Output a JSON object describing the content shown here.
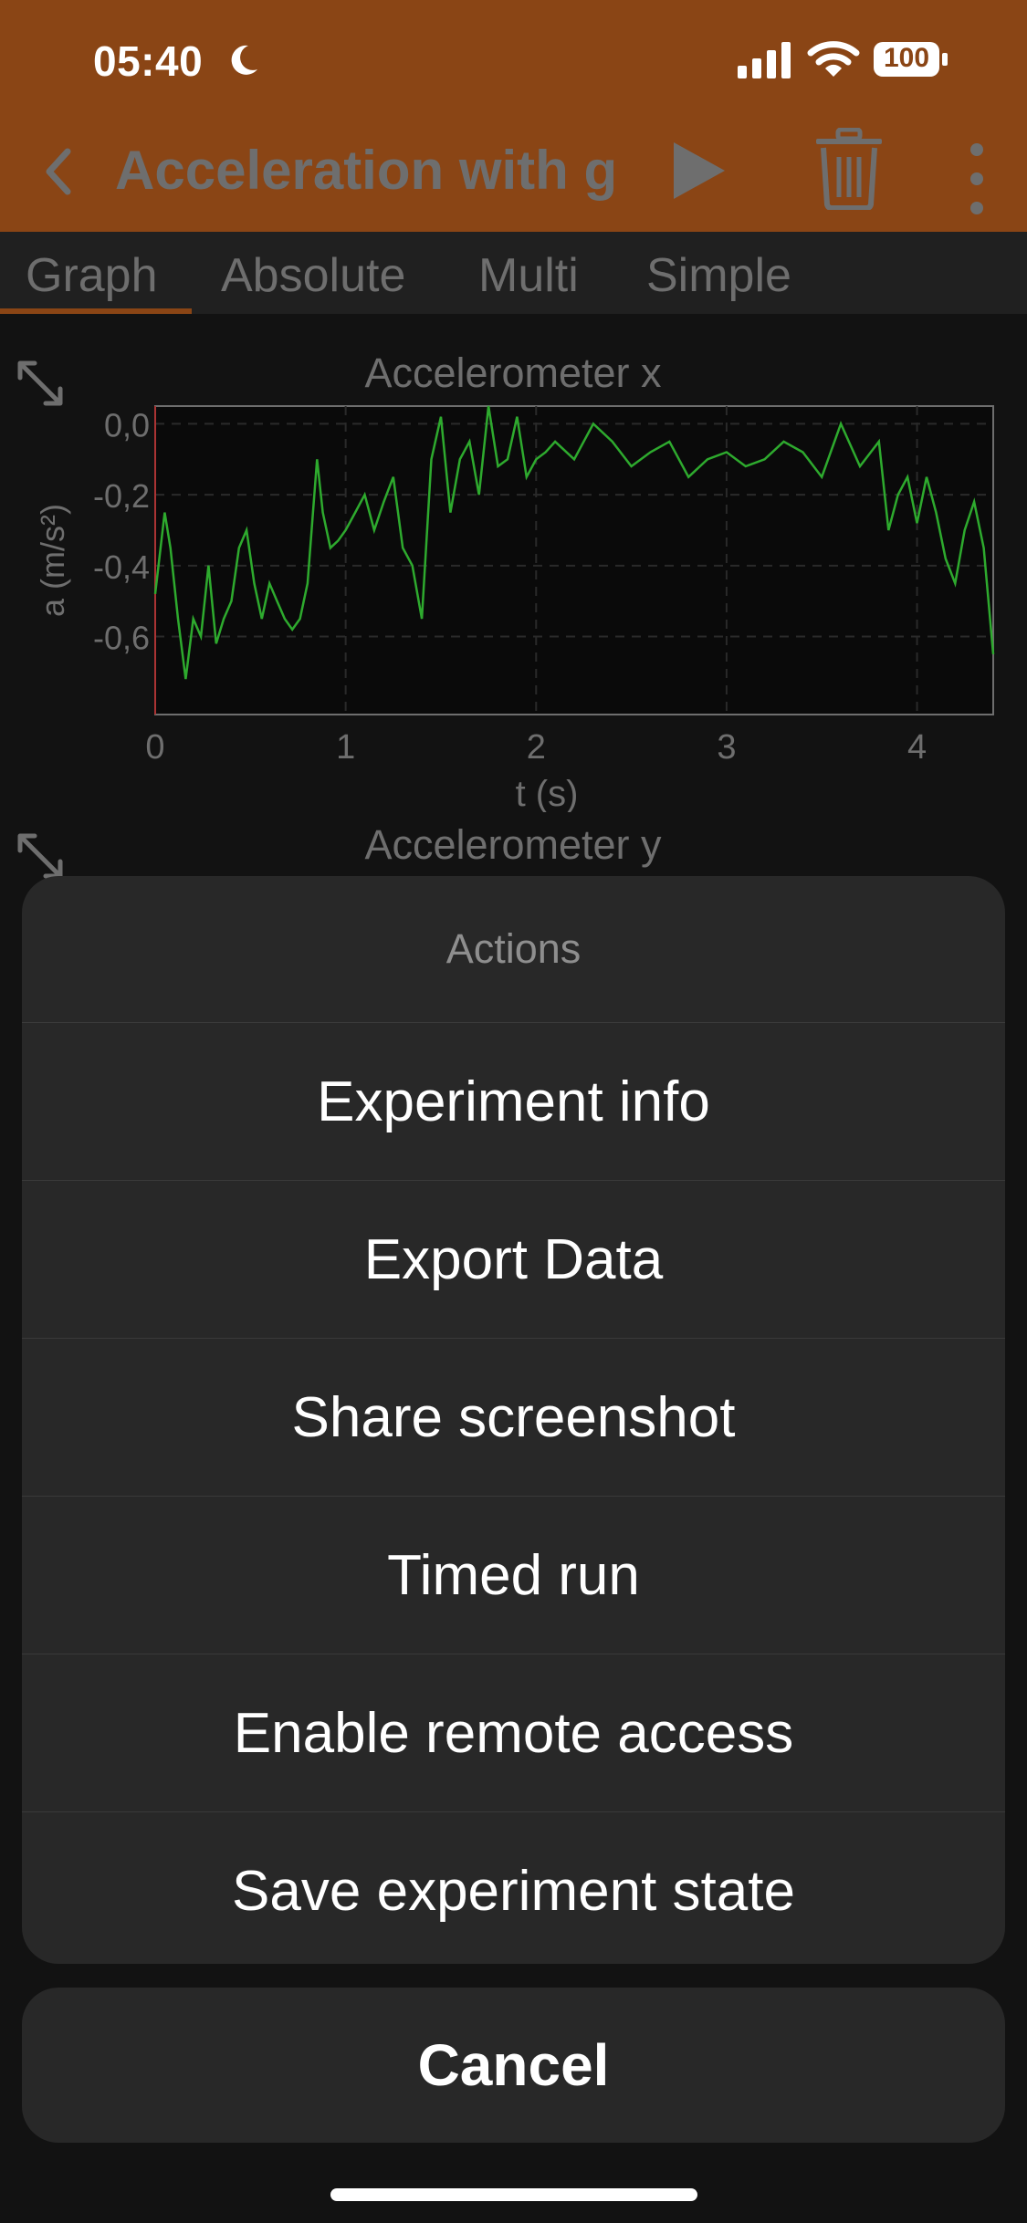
{
  "status_bar": {
    "time": "05:40",
    "battery": "100"
  },
  "app_bar": {
    "title": "Acceleration with g"
  },
  "tabs": [
    {
      "label": "Graph",
      "active": true
    },
    {
      "label": "Absolute",
      "active": false
    },
    {
      "label": "Multi",
      "active": false
    },
    {
      "label": "Simple",
      "active": false
    }
  ],
  "graphs": [
    {
      "title": "Accelerometer x"
    },
    {
      "title": "Accelerometer y"
    }
  ],
  "chart_data": {
    "type": "line",
    "title": "Accelerometer x",
    "xlabel": "t (s)",
    "ylabel": "a (m/s²)",
    "xlim": [
      0,
      4.4
    ],
    "ylim": [
      -0.82,
      0.05
    ],
    "x_ticks": [
      "0",
      "1",
      "2",
      "3",
      "4"
    ],
    "y_ticks": [
      "0,0",
      "-0,2",
      "-0,4",
      "-0,6"
    ],
    "series_color": "#2eaa2e",
    "x": [
      0,
      0.05,
      0.08,
      0.12,
      0.16,
      0.2,
      0.24,
      0.28,
      0.32,
      0.36,
      0.4,
      0.44,
      0.48,
      0.52,
      0.56,
      0.6,
      0.64,
      0.68,
      0.72,
      0.76,
      0.8,
      0.85,
      0.88,
      0.92,
      0.96,
      1.0,
      1.05,
      1.1,
      1.15,
      1.2,
      1.25,
      1.3,
      1.35,
      1.4,
      1.45,
      1.5,
      1.55,
      1.6,
      1.65,
      1.7,
      1.75,
      1.8,
      1.85,
      1.9,
      1.95,
      2.0,
      2.05,
      2.1,
      2.2,
      2.3,
      2.4,
      2.5,
      2.6,
      2.7,
      2.8,
      2.9,
      3.0,
      3.1,
      3.2,
      3.3,
      3.4,
      3.5,
      3.6,
      3.7,
      3.8,
      3.85,
      3.9,
      3.95,
      4.0,
      4.05,
      4.1,
      4.15,
      4.2,
      4.25,
      4.3,
      4.35,
      4.4
    ],
    "y": [
      -0.48,
      -0.25,
      -0.35,
      -0.55,
      -0.72,
      -0.55,
      -0.6,
      -0.4,
      -0.62,
      -0.55,
      -0.5,
      -0.35,
      -0.3,
      -0.45,
      -0.55,
      -0.45,
      -0.5,
      -0.55,
      -0.58,
      -0.55,
      -0.45,
      -0.1,
      -0.25,
      -0.35,
      -0.33,
      -0.3,
      -0.25,
      -0.2,
      -0.3,
      -0.22,
      -0.15,
      -0.35,
      -0.4,
      -0.55,
      -0.1,
      0.02,
      -0.25,
      -0.1,
      -0.05,
      -0.2,
      0.05,
      -0.12,
      -0.1,
      0.02,
      -0.15,
      -0.1,
      -0.08,
      -0.05,
      -0.1,
      0.0,
      -0.05,
      -0.12,
      -0.08,
      -0.05,
      -0.15,
      -0.1,
      -0.08,
      -0.12,
      -0.1,
      -0.05,
      -0.08,
      -0.15,
      0.0,
      -0.12,
      -0.05,
      -0.3,
      -0.2,
      -0.15,
      -0.28,
      -0.15,
      -0.25,
      -0.38,
      -0.45,
      -0.3,
      -0.22,
      -0.35,
      -0.65
    ]
  },
  "action_sheet": {
    "header": "Actions",
    "items": [
      "Experiment info",
      "Export Data",
      "Share screenshot",
      "Timed run",
      "Enable remote access",
      "Save experiment state"
    ],
    "cancel": "Cancel"
  }
}
